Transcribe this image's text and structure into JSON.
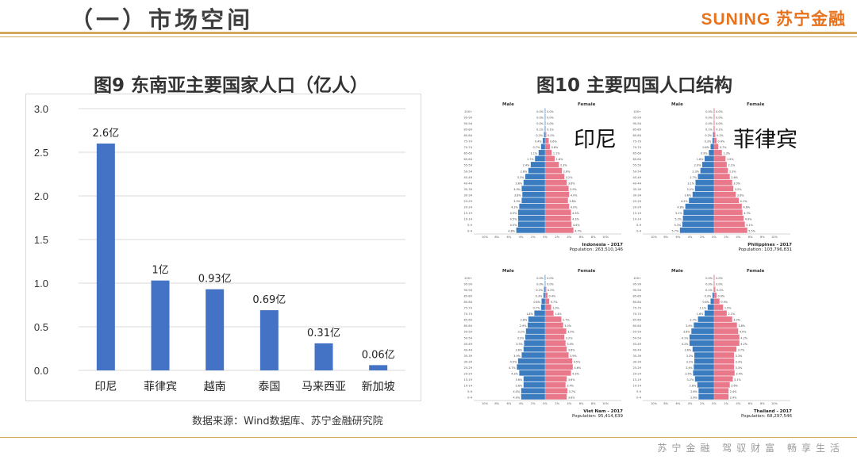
{
  "slide": {
    "title": "（一）市场空间",
    "brand": "SUNING 苏宁金融",
    "slogan": "苏宁金融  驾驭财富  畅享生活"
  },
  "fig9": {
    "title": "图9 东南亚主要国家人口（亿人）",
    "source": "数据来源：Wind数据库、苏宁金融研究院"
  },
  "fig10": {
    "title": "图10 主要四国人口结构",
    "panels": [
      {
        "label": "印尼",
        "country": "Indonesia - 2017",
        "population": "Population: 263,510,146"
      },
      {
        "label": "菲律宾",
        "country": "Philippines - 2017",
        "population": "Population: 103,796,831"
      },
      {
        "label": "",
        "country": "Viet Nam - 2017",
        "population": "Population: 95,414,639"
      },
      {
        "label": "",
        "country": "Thailand - 2017",
        "population": "Population: 68,297,546"
      }
    ],
    "male_label": "Male",
    "female_label": "Female",
    "colors": {
      "male": "#3b7bbf",
      "female": "#e8788a"
    }
  },
  "chart_data": [
    {
      "type": "bar",
      "title": "图9 东南亚主要国家人口（亿人）",
      "categories": [
        "印尼",
        "菲律宾",
        "越南",
        "泰国",
        "马来西亚",
        "新加坡"
      ],
      "values": [
        2.6,
        1.03,
        0.93,
        0.69,
        0.31,
        0.06
      ],
      "data_labels": [
        "2.6亿",
        "1亿",
        "0.93亿",
        "0.69亿",
        "0.31亿",
        "0.06亿"
      ],
      "yticks": [
        "0.0",
        "0.5",
        "1.0",
        "1.5",
        "2.0",
        "2.5",
        "3.0"
      ],
      "ylim": [
        0,
        3.0
      ],
      "grid": true,
      "color": "#4472c4",
      "xlabel": "",
      "ylabel": ""
    },
    {
      "type": "bar",
      "title": "图10 主要四国人口结构",
      "subtype": "population-pyramid",
      "panels": [
        {
          "name": "Indonesia - 2017",
          "male": [
            4.8,
            4.5,
            4.5,
            4.5,
            4.3,
            3.9,
            3.8,
            3.9,
            3.6,
            3.3,
            2.8,
            2.4,
            1.7,
            1.1,
            0.7,
            0.4,
            0.2,
            0.1,
            0.0,
            0.0,
            0.0
          ],
          "female": [
            4.7,
            4.4,
            4.3,
            4.3,
            4.0,
            3.8,
            4.0,
            3.9,
            3.6,
            3.2,
            2.8,
            2.3,
            1.6,
            1.1,
            0.8,
            0.6,
            0.2,
            0.1,
            0.0,
            0.0,
            0.0
          ]
        },
        {
          "name": "Philippines - 2017",
          "male": [
            5.7,
            5.3,
            5.2,
            5.1,
            4.8,
            4.2,
            3.6,
            3.2,
            3.1,
            2.7,
            2.3,
            2.0,
            1.6,
            0.9,
            0.6,
            0.3,
            0.2,
            0.1,
            0.0,
            0.0,
            0.0
          ],
          "female": [
            5.5,
            5.1,
            4.9,
            4.7,
            4.6,
            4.1,
            3.6,
            3.2,
            3.0,
            2.6,
            2.3,
            2.1,
            1.9,
            1.3,
            0.7,
            0.4,
            0.2,
            0.1,
            0.0,
            0.0,
            0.0
          ]
        },
        {
          "name": "Viet Nam - 2017",
          "male": [
            4.0,
            4.0,
            3.6,
            3.6,
            4.3,
            4.7,
            4.5,
            3.9,
            3.6,
            3.5,
            3.3,
            3.2,
            2.9,
            2.8,
            1.8,
            0.7,
            0.6,
            0.3,
            0.2,
            0.0,
            0.0
          ],
          "female": [
            3.6,
            3.7,
            3.4,
            3.6,
            4.3,
            4.6,
            4.5,
            3.9,
            3.6,
            3.4,
            3.2,
            3.5,
            3.0,
            2.7,
            1.4,
            1.0,
            0.7,
            0.4,
            0.2,
            0.0,
            0.0
          ],
          "color_note": "same"
        },
        {
          "name": "Thailand - 2017",
          "male": [
            2.6,
            2.6,
            2.8,
            3.2,
            3.5,
            3.4,
            3.3,
            3.3,
            3.6,
            4.1,
            4.1,
            3.8,
            3.4,
            2.7,
            1.6,
            1.1,
            0.6,
            0.3,
            0.1,
            0.0,
            0.0
          ],
          "female": [
            2.4,
            2.4,
            2.6,
            3.1,
            3.4,
            3.3,
            3.3,
            3.3,
            3.7,
            4.2,
            4.2,
            4.0,
            3.8,
            3.0,
            2.1,
            1.5,
            0.9,
            0.4,
            0.2,
            0.0,
            0.0
          ]
        }
      ],
      "age_groups": [
        "0-4",
        "5-9",
        "10-14",
        "15-19",
        "20-24",
        "25-29",
        "30-34",
        "35-39",
        "40-44",
        "45-49",
        "50-54",
        "55-59",
        "60-64",
        "65-69",
        "70-74",
        "75-79",
        "80-84",
        "85-89",
        "90-94",
        "95-99",
        "100+"
      ],
      "xlabel": "",
      "ylabel": ""
    }
  ]
}
